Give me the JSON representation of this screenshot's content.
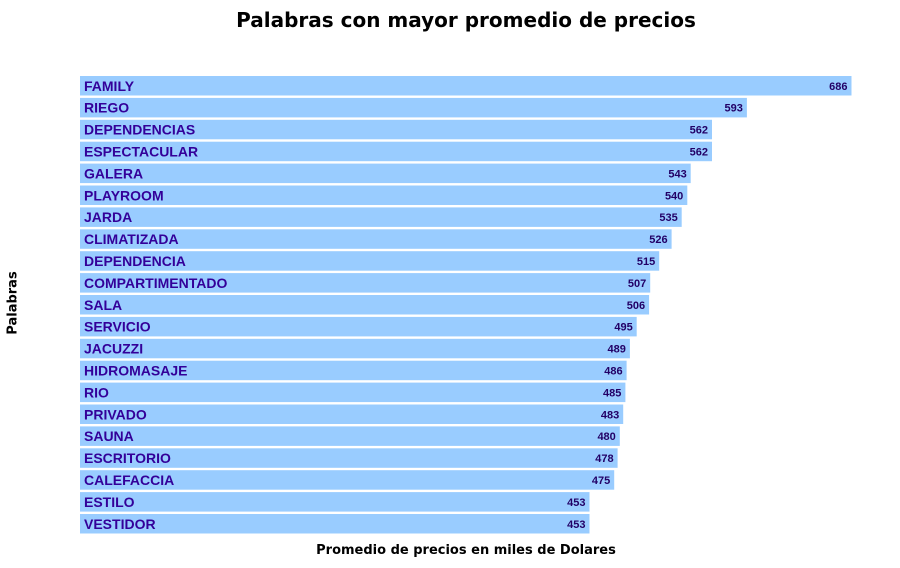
{
  "chart_data": {
    "type": "bar",
    "orientation": "horizontal",
    "title": "Palabras con mayor promedio de precios",
    "xlabel": "Promedio de precios en miles de Dolares",
    "ylabel": "Palabras",
    "categories": [
      "FAMILY",
      "RIEGO",
      "DEPENDENCIAS",
      "ESPECTACULAR",
      "GALERA",
      "PLAYROOM",
      "JARDA",
      "CLIMATIZADA",
      "DEPENDENCIA",
      "COMPARTIMENTADO",
      "SALA",
      "SERVICIO",
      "JACUZZI",
      "HIDROMASAJE",
      "RIO",
      "PRIVADO",
      "SAUNA",
      "ESCRITORIO",
      "CALEFACCIA",
      "ESTILO",
      "VESTIDOR"
    ],
    "values": [
      686,
      593,
      562,
      562,
      543,
      540,
      535,
      526,
      515,
      507,
      506,
      495,
      489,
      486,
      485,
      483,
      480,
      478,
      475,
      453,
      453
    ],
    "value_labels": [
      "686",
      "593",
      "562",
      "562",
      "543",
      "540",
      "535",
      "526",
      "515",
      "507",
      "506",
      "495",
      "489",
      "486",
      "485",
      "483",
      "480",
      "478",
      "475",
      "453",
      "453"
    ],
    "xlim": [
      0,
      690
    ],
    "grid": false,
    "legend": false,
    "colors": {
      "bar": "#99ccff",
      "label": "#330099",
      "value": "#220066",
      "text": "#000000"
    }
  }
}
